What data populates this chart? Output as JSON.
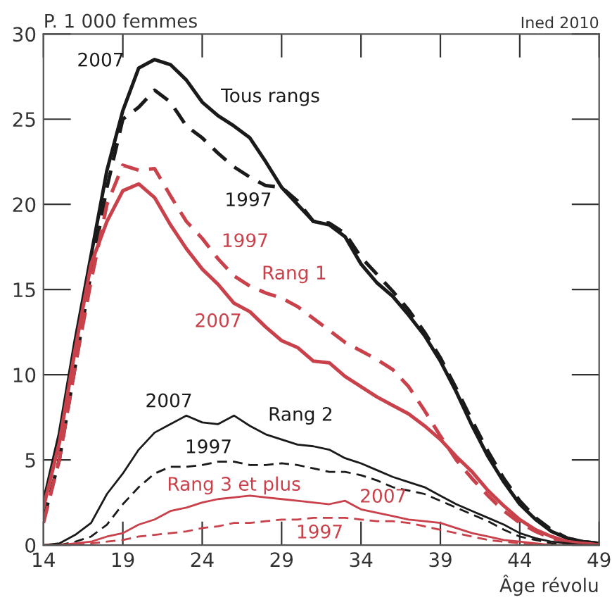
{
  "chart_data": {
    "type": "line",
    "ylabel": "P. 1 000 femmes",
    "xlabel": "Âge révolu",
    "x": [
      14,
      15,
      16,
      17,
      18,
      19,
      20,
      21,
      22,
      23,
      24,
      25,
      26,
      27,
      28,
      29,
      30,
      31,
      32,
      33,
      34,
      35,
      36,
      37,
      38,
      39,
      40,
      41,
      42,
      43,
      44,
      45,
      46,
      47,
      48,
      49
    ],
    "xlim": [
      14,
      49
    ],
    "xticks": [
      14,
      19,
      24,
      29,
      34,
      39,
      44,
      49
    ],
    "ylim": [
      0,
      30
    ],
    "yticks": [
      0,
      5,
      10,
      15,
      20,
      25,
      30
    ],
    "grid": false,
    "legend": false,
    "marker": "none",
    "series": [
      {
        "color": "#1a1a1a",
        "line_style": "solid",
        "values": [
          2.5,
          6.5,
          12,
          17,
          22,
          25.5,
          28,
          28.5,
          28.2,
          27.3,
          26,
          25.2,
          24.6,
          23.9,
          22.5,
          21,
          20,
          19,
          18.8,
          18.1,
          16.5,
          15.4,
          14.6,
          13.5,
          12.3,
          10.8,
          9,
          7,
          5.2,
          3.7,
          2.4,
          1.5,
          0.8,
          0.4,
          0.2,
          0.1
        ]
      },
      {
        "color": "#1a1a1a",
        "line_style": "dashed",
        "values": [
          1.5,
          5,
          10.5,
          16,
          21,
          25,
          25.7,
          26.7,
          26,
          24.6,
          23.9,
          23,
          22.2,
          21.6,
          21.1,
          21,
          20.2,
          19,
          18.9,
          18.3,
          16.9,
          15.9,
          14.9,
          13.8,
          12.5,
          11,
          9.2,
          7.3,
          5.5,
          3.9,
          2.6,
          1.6,
          0.9,
          0.4,
          0.2,
          0.1
        ]
      },
      {
        "color": "#c8414b",
        "line_style": "solid",
        "values": [
          2.2,
          6,
          11.5,
          16.5,
          19,
          20.8,
          21.2,
          20.4,
          18.8,
          17.4,
          16.2,
          15.3,
          14.2,
          13.7,
          12.8,
          12,
          11.6,
          10.8,
          10.7,
          9.9,
          9.3,
          8.7,
          8.2,
          7.7,
          7,
          6.2,
          5.2,
          4.3,
          3.2,
          2.3,
          1.5,
          0.9,
          0.5,
          0.2,
          0.1,
          0
        ]
      },
      {
        "color": "#c8414b",
        "line_style": "dashed",
        "values": [
          1.3,
          5,
          10.5,
          15.5,
          20,
          22.3,
          22,
          22.1,
          20.5,
          19,
          18,
          16.8,
          15.8,
          15.2,
          14.8,
          14.5,
          14,
          13.3,
          12.6,
          11.9,
          11.4,
          10.9,
          10.3,
          9.3,
          7.9,
          6.4,
          5,
          3.9,
          2.9,
          2,
          1.3,
          0.8,
          0.4,
          0.2,
          0.1,
          0
        ]
      },
      {
        "color": "#1a1a1a",
        "line_style": "solid",
        "values": [
          0,
          0.1,
          0.6,
          1.3,
          3,
          4.2,
          5.6,
          6.6,
          7.1,
          7.6,
          7.2,
          7.1,
          7.6,
          7,
          6.5,
          6.2,
          5.9,
          5.8,
          5.6,
          5.1,
          4.8,
          4.4,
          4,
          3.7,
          3.4,
          2.9,
          2.4,
          2,
          1.6,
          1.2,
          0.7,
          0.4,
          0.2,
          0.1,
          0,
          0
        ]
      },
      {
        "color": "#1a1a1a",
        "line_style": "dashed",
        "values": [
          0,
          0,
          0.2,
          0.5,
          1.2,
          2.4,
          3.4,
          4.2,
          4.6,
          4.6,
          4.7,
          4.9,
          4.9,
          4.7,
          4.7,
          4.8,
          4.7,
          4.5,
          4.3,
          4.3,
          4.1,
          3.8,
          3.4,
          3.2,
          3,
          2.6,
          2.2,
          1.8,
          1.4,
          0.9,
          0.5,
          0.3,
          0.1,
          0,
          0,
          0
        ]
      },
      {
        "color": "#c8414b",
        "line_style": "solid",
        "values": [
          0,
          0,
          0.1,
          0.2,
          0.5,
          0.7,
          1.2,
          1.5,
          2,
          2.2,
          2.5,
          2.7,
          2.8,
          2.9,
          2.8,
          2.7,
          2.6,
          2.5,
          2.4,
          2.6,
          2.1,
          1.9,
          1.7,
          1.5,
          1.4,
          1.3,
          1,
          0.7,
          0.5,
          0.3,
          0.2,
          0.1,
          0,
          0,
          0,
          0
        ]
      },
      {
        "color": "#c8414b",
        "line_style": "dashed",
        "values": [
          0,
          0,
          0,
          0.1,
          0.2,
          0.3,
          0.5,
          0.6,
          0.7,
          0.8,
          1,
          1.1,
          1.3,
          1.3,
          1.4,
          1.5,
          1.5,
          1.6,
          1.6,
          1.6,
          1.5,
          1.4,
          1.4,
          1.3,
          1.1,
          0.9,
          0.7,
          0.5,
          0.3,
          0.2,
          0.1,
          0,
          0,
          0,
          0,
          0
        ]
      }
    ],
    "annotations": [
      "2007",
      "Tous rangs",
      "1997",
      "1997",
      "Rang 1",
      "2007",
      "2007",
      "Rang 2",
      "1997",
      "Rang 3 et plus",
      "2007",
      "1997",
      "Ined 2010"
    ]
  }
}
